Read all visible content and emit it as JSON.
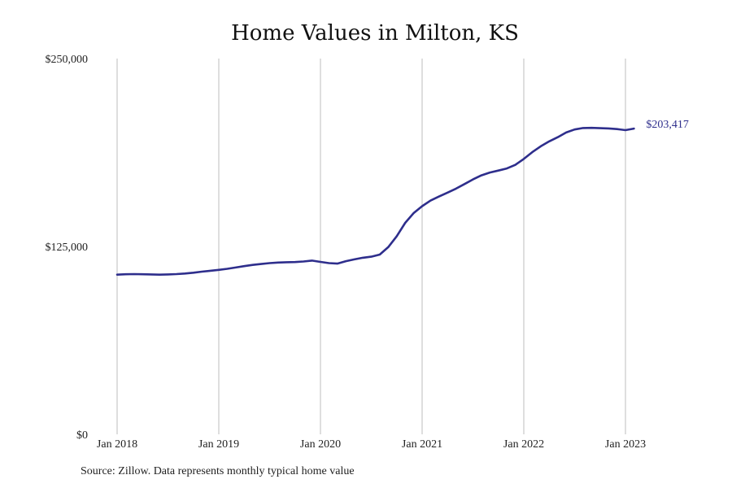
{
  "chart_data": {
    "type": "line",
    "title": "Home Values in Milton, KS",
    "xlabel": "",
    "ylabel": "",
    "x_ticks": [
      "Jan 2018",
      "Jan 2019",
      "Jan 2020",
      "Jan 2021",
      "Jan 2022",
      "Jan 2023"
    ],
    "y_ticks": [
      "$0",
      "$125,000",
      "$250,000"
    ],
    "y_tick_values": [
      0,
      125000,
      250000
    ],
    "ylim": [
      0,
      250000
    ],
    "xlim": [
      "2018-01",
      "2023-02"
    ],
    "grid": "vertical",
    "line_color": "#2e2e8c",
    "grid_color": "#bdbdbd",
    "end_label": "$203,417",
    "series": [
      {
        "x": [
          "2018-01",
          "2018-02",
          "2018-03",
          "2018-04",
          "2018-05",
          "2018-06",
          "2018-07",
          "2018-08",
          "2018-09",
          "2018-10",
          "2018-11",
          "2018-12",
          "2019-01",
          "2019-02",
          "2019-03",
          "2019-04",
          "2019-05",
          "2019-06",
          "2019-07",
          "2019-08",
          "2019-09",
          "2019-10",
          "2019-11",
          "2019-12",
          "2020-01",
          "2020-02",
          "2020-03",
          "2020-04",
          "2020-05",
          "2020-06",
          "2020-07",
          "2020-08",
          "2020-09",
          "2020-10",
          "2020-11",
          "2020-12",
          "2021-01",
          "2021-02",
          "2021-03",
          "2021-04",
          "2021-05",
          "2021-06",
          "2021-07",
          "2021-08",
          "2021-09",
          "2021-10",
          "2021-11",
          "2021-12",
          "2022-01",
          "2022-02",
          "2022-03",
          "2022-04",
          "2022-05",
          "2022-06",
          "2022-07",
          "2022-08",
          "2022-09",
          "2022-10",
          "2022-11",
          "2022-12",
          "2023-01",
          "2023-02"
        ],
        "values": [
          106200,
          106500,
          106600,
          106500,
          106400,
          106200,
          106400,
          106600,
          107000,
          107500,
          108200,
          108800,
          109400,
          110100,
          111000,
          111900,
          112700,
          113300,
          113900,
          114300,
          114500,
          114600,
          115000,
          115600,
          114700,
          113900,
          113600,
          115200,
          116400,
          117500,
          118200,
          119600,
          124500,
          131800,
          140700,
          147200,
          151800,
          155500,
          158200,
          160800,
          163500,
          166500,
          169600,
          172300,
          174200,
          175500,
          176900,
          179300,
          183200,
          187700,
          191600,
          194900,
          197700,
          200800,
          202800,
          203800,
          203900,
          203700,
          203500,
          203100,
          202400,
          203417
        ]
      }
    ]
  },
  "source": "Source: Zillow. Data represents monthly typical home value"
}
